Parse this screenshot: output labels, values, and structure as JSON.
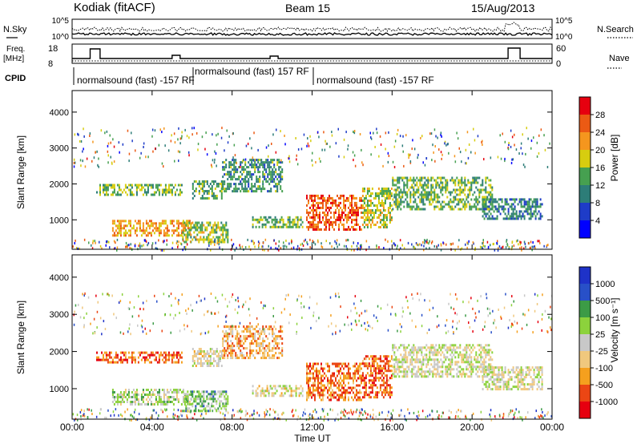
{
  "header": {
    "station": "Kodiak (fitACF)",
    "beam": "Beam 15",
    "date": "15/Aug/2013"
  },
  "noise_panel": {
    "left_label": "N.Sky",
    "right_label": "N.Search",
    "left_ticks": [
      "10^5",
      "10^0"
    ],
    "right_ticks": [
      "10^5",
      "10^0"
    ]
  },
  "freq_panel": {
    "left_label_1": "Freq.",
    "left_label_2": "[MHz]",
    "right_label": "Nave",
    "left_ticks": [
      "18",
      "8"
    ],
    "right_ticks": [
      "60",
      "0"
    ]
  },
  "cpid": {
    "label": "CPID",
    "segments": [
      {
        "text": "normalsound (fast) -157 RF"
      },
      {
        "text": "normalsound (fast) 157 RF"
      },
      {
        "text": "normalsound (fast) -157 RF"
      }
    ]
  },
  "x_axis": {
    "label": "Time UT",
    "ticks": [
      "00:00",
      "04:00",
      "08:00",
      "12:00",
      "16:00",
      "20:00",
      "00:00"
    ]
  },
  "chart_data": [
    {
      "type": "heatmap",
      "name": "power",
      "ylabel": "Slant Range [km]",
      "x_range_hours": [
        0,
        24
      ],
      "ylim": [
        180,
        4600
      ],
      "y_ticks": [
        1000,
        2000,
        3000,
        4000
      ],
      "colorbar": {
        "label": "Power [dB]",
        "ticks": [
          "28",
          "24",
          "20",
          "16",
          "12",
          "8",
          "4"
        ],
        "colors": [
          "#0000ff",
          "#1e3cc8",
          "#2d7d78",
          "#46a050",
          "#d7cd0f",
          "#f5961e",
          "#eb5a14",
          "#e6000f"
        ]
      },
      "regions": [
        {
          "t": [
            1.2,
            5.5
          ],
          "r": [
            1700,
            2000
          ],
          "level": 0.45
        },
        {
          "t": [
            6.0,
            7.5
          ],
          "r": [
            1600,
            2100
          ],
          "level": 0.4
        },
        {
          "t": [
            7.5,
            10.5
          ],
          "r": [
            1800,
            2700
          ],
          "level": 0.35
        },
        {
          "t": [
            2.0,
            6.0
          ],
          "r": [
            550,
            1000
          ],
          "level": 0.7
        },
        {
          "t": [
            5.5,
            7.8
          ],
          "r": [
            400,
            950
          ],
          "level": 0.5
        },
        {
          "t": [
            9.0,
            11.5
          ],
          "r": [
            800,
            1100
          ],
          "level": 0.45
        },
        {
          "t": [
            11.7,
            14.5
          ],
          "r": [
            700,
            1700
          ],
          "level": 0.85
        },
        {
          "t": [
            14.5,
            16.0
          ],
          "r": [
            800,
            1900
          ],
          "level": 0.55
        },
        {
          "t": [
            16.0,
            21.0
          ],
          "r": [
            1300,
            2200
          ],
          "level": 0.45
        },
        {
          "t": [
            20.5,
            23.5
          ],
          "r": [
            1000,
            1600
          ],
          "level": 0.3
        }
      ]
    },
    {
      "type": "heatmap",
      "name": "velocity",
      "ylabel": "Slant Range [km]",
      "x_range_hours": [
        0,
        24
      ],
      "ylim": [
        180,
        4600
      ],
      "y_ticks": [
        1000,
        2000,
        3000,
        4000
      ],
      "colorbar": {
        "label": "Velocity [m s⁻¹]",
        "ticks": [
          "1000",
          "500",
          "100",
          "25",
          "-25",
          "-100",
          "-500",
          "-1000"
        ],
        "colors": [
          "#e6000f",
          "#eb4614",
          "#f5a01e",
          "#f0c87d",
          "#c8c8c8",
          "#8cd23c",
          "#3c9b46",
          "#2850c8",
          "#1e32c8"
        ]
      },
      "regions": [
        {
          "t": [
            1.2,
            5.5
          ],
          "r": [
            1700,
            2000
          ],
          "level": 0.15
        },
        {
          "t": [
            6.0,
            7.5
          ],
          "r": [
            1600,
            2100
          ],
          "level": 0.45
        },
        {
          "t": [
            7.5,
            10.5
          ],
          "r": [
            1800,
            2700
          ],
          "level": 0.3
        },
        {
          "t": [
            2.0,
            6.0
          ],
          "r": [
            550,
            1000
          ],
          "level": 0.55
        },
        {
          "t": [
            5.5,
            7.8
          ],
          "r": [
            400,
            950
          ],
          "level": 0.65
        },
        {
          "t": [
            9.0,
            11.5
          ],
          "r": [
            800,
            1100
          ],
          "level": 0.45
        },
        {
          "t": [
            11.7,
            14.5
          ],
          "r": [
            700,
            1700
          ],
          "level": 0.2
        },
        {
          "t": [
            14.5,
            16.0
          ],
          "r": [
            800,
            1900
          ],
          "level": 0.15
        },
        {
          "t": [
            16.0,
            21.0
          ],
          "r": [
            1300,
            2200
          ],
          "level": 0.5
        },
        {
          "t": [
            20.5,
            23.5
          ],
          "r": [
            1000,
            1600
          ],
          "level": 0.5
        }
      ]
    }
  ]
}
